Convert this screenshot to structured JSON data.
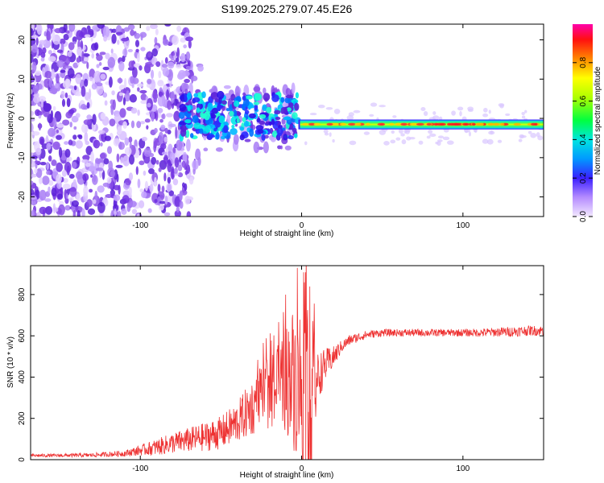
{
  "title": "S199.2025.279.07.45.E26",
  "chart_data": [
    {
      "type": "heatmap",
      "panel": "spectrogram",
      "xlabel": "Height of straight line (km)",
      "ylabel": "Frequency (Hz)",
      "xlim": [
        -168,
        150
      ],
      "ylim": [
        -25,
        24
      ],
      "xticks": [
        -100,
        0,
        100
      ],
      "xtick_labels": [
        "-100",
        "0",
        "100"
      ],
      "yticks": [
        -20,
        -10,
        0,
        10,
        20
      ],
      "ytick_labels": [
        "-20",
        "-10",
        "0",
        "10",
        "20"
      ],
      "colorbar": {
        "label": "Normalized spectral amplitude",
        "range": [
          0,
          1
        ],
        "ticks": [
          0,
          0.2,
          0.4,
          0.6,
          0.8
        ],
        "tick_labels": [
          "0.0",
          "0.2",
          "0.4",
          "0.6",
          "0.8"
        ]
      },
      "regions": [
        {
          "name": "noise-scatter",
          "x": [
            -168,
            -80
          ],
          "freq": [
            -25,
            24
          ],
          "amplitude": [
            0.05,
            0.15
          ]
        },
        {
          "name": "turbulent-band",
          "x": [
            -75,
            -10
          ],
          "freq": [
            -5,
            6
          ],
          "amplitude": [
            0.2,
            0.5
          ]
        },
        {
          "name": "carrier-line",
          "x": [
            0,
            150
          ],
          "freq": [
            -2,
            -1
          ],
          "amplitude": [
            0.6,
            1.0
          ]
        }
      ]
    },
    {
      "type": "line",
      "panel": "snr",
      "xlabel": "Height of straight line (km)",
      "ylabel": "SNR (10 * v/v)",
      "xlim": [
        -168,
        150
      ],
      "ylim": [
        0,
        940
      ],
      "xticks": [
        -100,
        0,
        100
      ],
      "xtick_labels": [
        "-100",
        "0",
        "100"
      ],
      "yticks": [
        0,
        200,
        400,
        600,
        800
      ],
      "ytick_labels": [
        "0",
        "200",
        "400",
        "600",
        "800"
      ],
      "color": "#ee3333",
      "series": [
        {
          "name": "SNR",
          "x": [
            -168,
            -150,
            -130,
            -110,
            -100,
            -90,
            -80,
            -70,
            -60,
            -50,
            -40,
            -30,
            -25,
            -20,
            -15,
            -10,
            -5,
            0,
            5,
            10,
            15,
            20,
            25,
            30,
            40,
            50,
            60,
            70,
            80,
            90,
            100,
            110,
            120,
            130,
            140,
            150
          ],
          "values": [
            20,
            20,
            22,
            30,
            45,
            60,
            80,
            95,
            110,
            130,
            180,
            260,
            300,
            330,
            350,
            390,
            400,
            350,
            300,
            400,
            460,
            500,
            550,
            580,
            605,
            615,
            615,
            615,
            615,
            615,
            615,
            615,
            618,
            620,
            625,
            625
          ],
          "spread": [
            8,
            8,
            10,
            15,
            25,
            40,
            50,
            60,
            70,
            80,
            100,
            140,
            160,
            180,
            200,
            260,
            350,
            420,
            480,
            120,
            80,
            50,
            30,
            25,
            20,
            18,
            18,
            18,
            18,
            18,
            18,
            20,
            22,
            25,
            25,
            25
          ]
        }
      ]
    }
  ]
}
